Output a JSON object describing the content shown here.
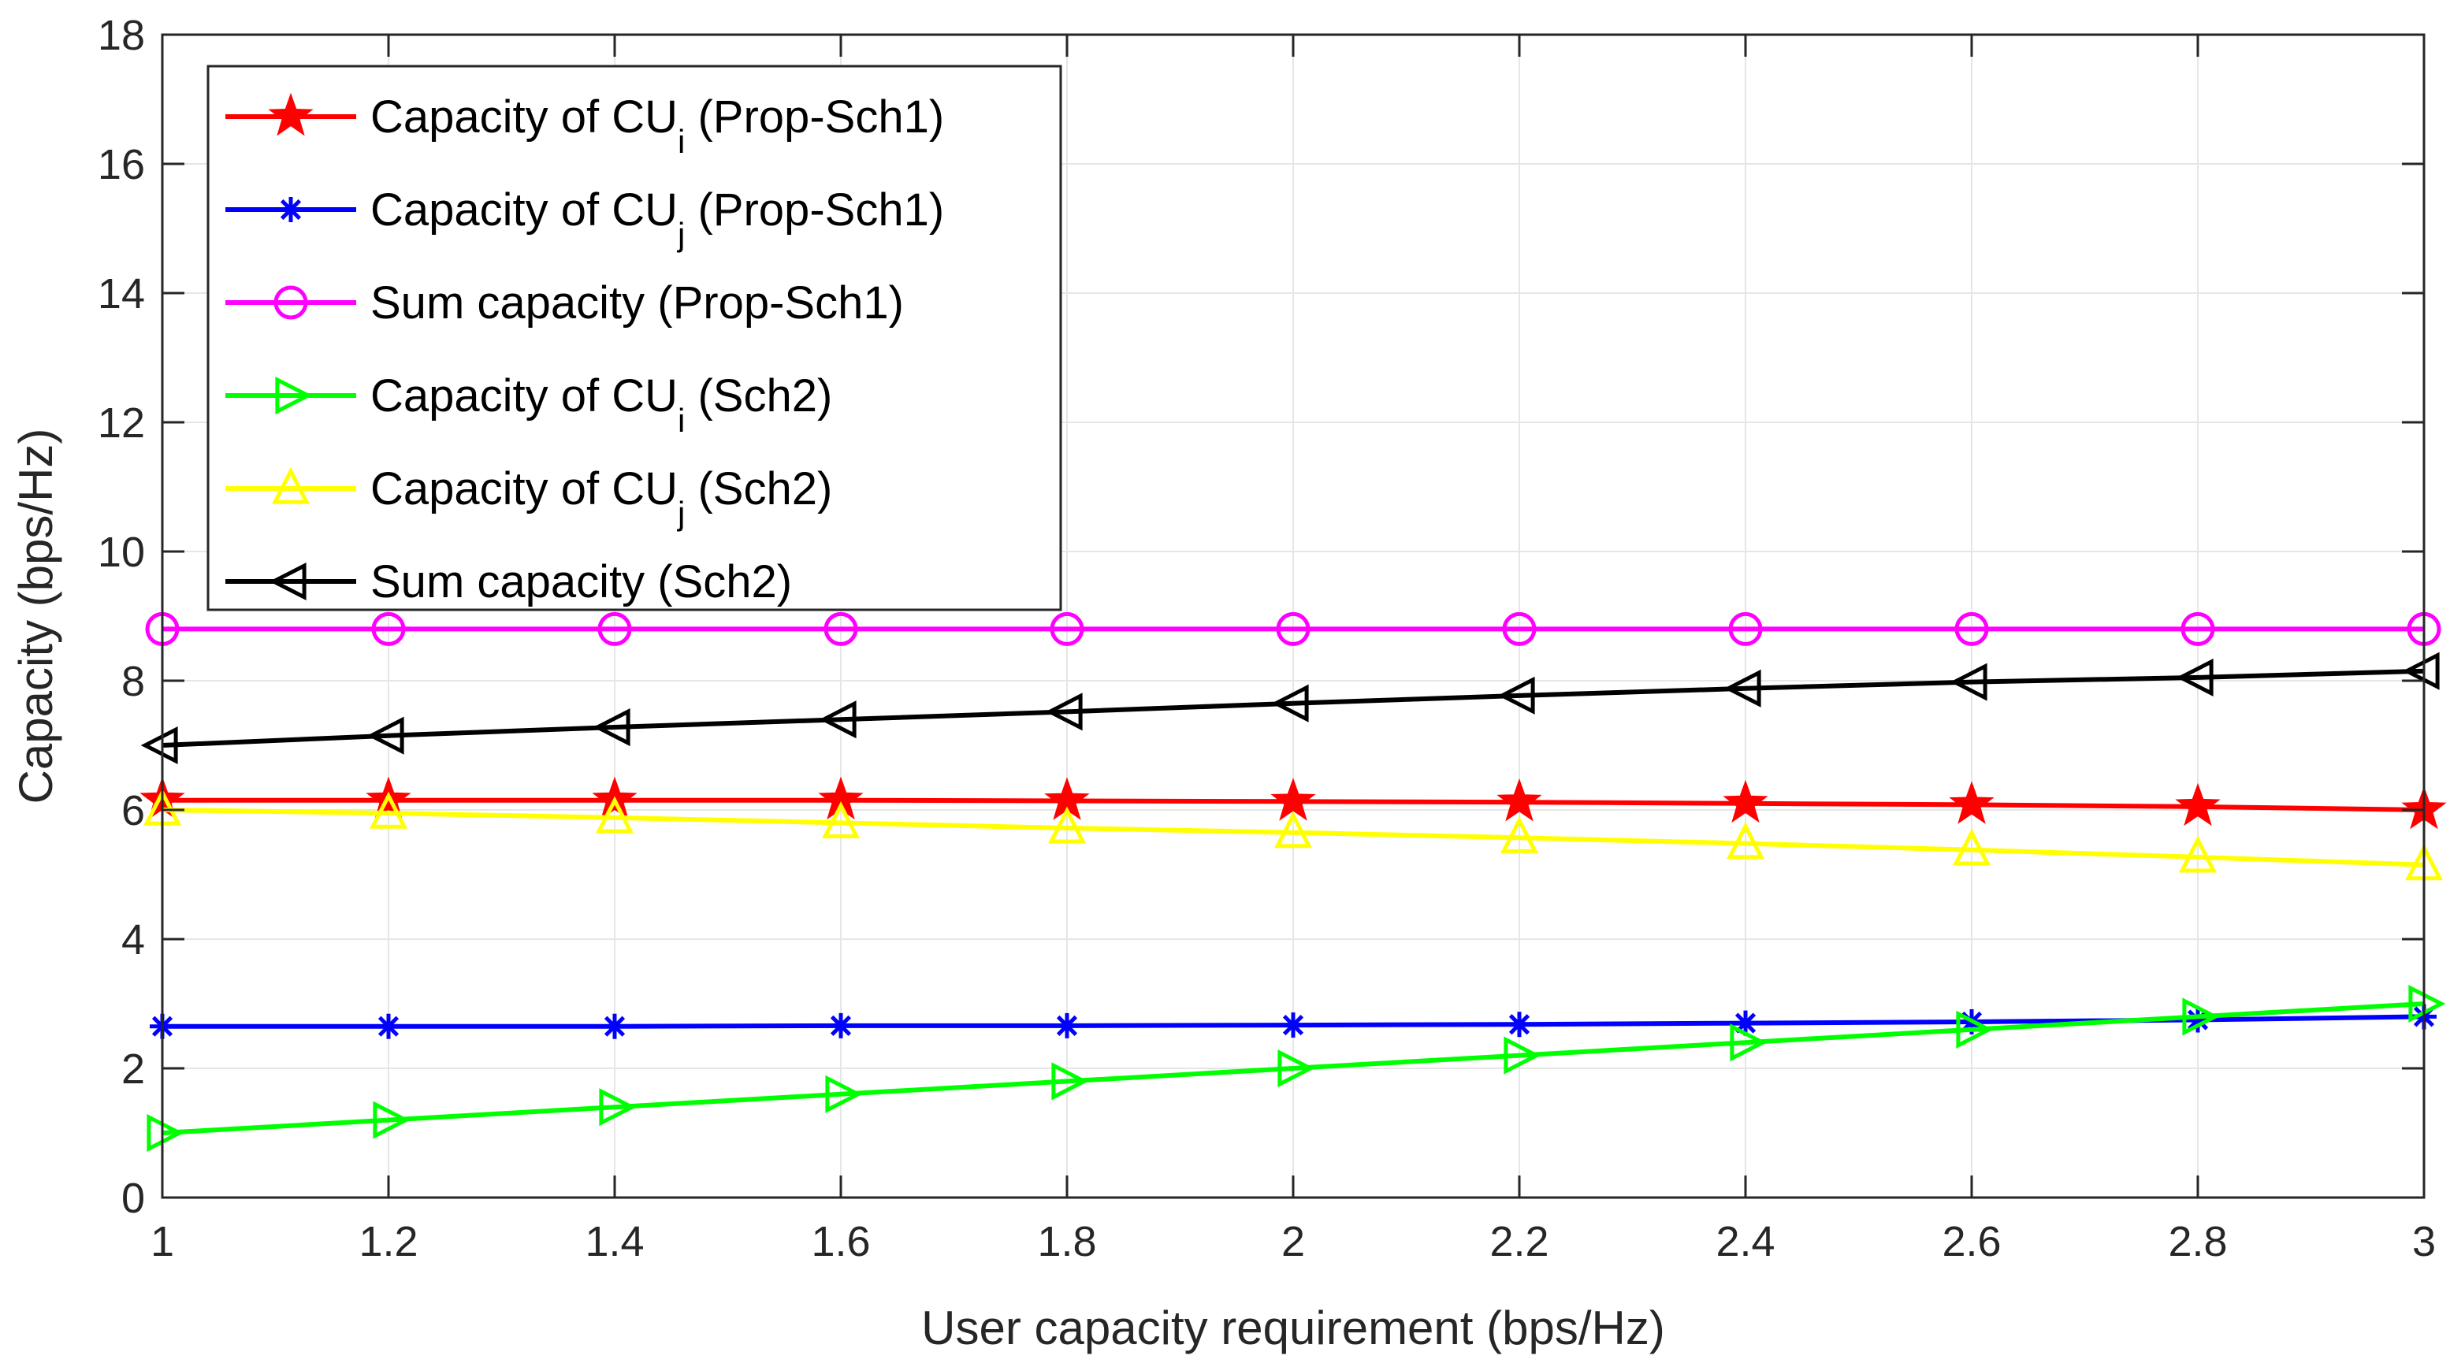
{
  "chart_data": {
    "type": "line",
    "title": "",
    "xlabel": "User capacity requirement (bps/Hz)",
    "ylabel": "Capacity (bps/Hz)",
    "xlim": [
      1,
      3
    ],
    "ylim": [
      0,
      18
    ],
    "grid": true,
    "legend_position": "top-left",
    "x": [
      1,
      1.2,
      1.4,
      1.6,
      1.8,
      2,
      2.2,
      2.4,
      2.6,
      2.8,
      3
    ],
    "x_ticks": [
      1,
      1.2,
      1.4,
      1.6,
      1.8,
      2,
      2.2,
      2.4,
      2.6,
      2.8,
      3
    ],
    "x_tick_labels": [
      "1",
      "1.2",
      "1.4",
      "1.6",
      "1.8",
      "2",
      "2.2",
      "2.4",
      "2.6",
      "2.8",
      "3"
    ],
    "y_ticks": [
      0,
      2,
      4,
      6,
      8,
      10,
      12,
      14,
      16,
      18
    ],
    "y_tick_labels": [
      "0",
      "2",
      "4",
      "6",
      "8",
      "10",
      "12",
      "14",
      "16",
      "18"
    ],
    "series": [
      {
        "name": "Capacity of CUi (Prop-Sch1)",
        "legend_main": "Capacity of CU",
        "legend_sub": "i",
        "legend_tail": " (Prop-Sch1)",
        "color": "#ff0000",
        "marker": "star",
        "values": [
          6.15,
          6.15,
          6.15,
          6.15,
          6.14,
          6.13,
          6.12,
          6.1,
          6.08,
          6.05,
          6.0
        ]
      },
      {
        "name": "Capacity of CUj (Prop-Sch1)",
        "legend_main": "Capacity of CU",
        "legend_sub": "j",
        "legend_tail": " (Prop-Sch1)",
        "color": "#0000ff",
        "marker": "asterisk",
        "values": [
          2.65,
          2.65,
          2.65,
          2.66,
          2.66,
          2.67,
          2.68,
          2.7,
          2.72,
          2.75,
          2.8
        ]
      },
      {
        "name": "Sum capacity (Prop-Sch1)",
        "legend_main": "Sum capacity (Prop-Sch1)",
        "legend_sub": "",
        "legend_tail": "",
        "color": "#ff00ff",
        "marker": "circle",
        "values": [
          8.8,
          8.8,
          8.8,
          8.8,
          8.8,
          8.8,
          8.8,
          8.8,
          8.8,
          8.8,
          8.8
        ]
      },
      {
        "name": "Capacity of CUi (Sch2)",
        "legend_main": "Capacity of CU",
        "legend_sub": "i",
        "legend_tail": " (Sch2)",
        "color": "#00ff00",
        "marker": "triangle-right",
        "values": [
          1.0,
          1.2,
          1.4,
          1.6,
          1.8,
          2.0,
          2.2,
          2.4,
          2.6,
          2.8,
          3.0
        ]
      },
      {
        "name": "Capacity of CUj (Sch2)",
        "legend_main": "Capacity of CU",
        "legend_sub": "j",
        "legend_tail": " (Sch2)",
        "color": "#ffff00",
        "marker": "triangle-up",
        "values": [
          6.0,
          5.95,
          5.88,
          5.8,
          5.72,
          5.65,
          5.57,
          5.48,
          5.38,
          5.27,
          5.15
        ]
      },
      {
        "name": "Sum capacity (Sch2)",
        "legend_main": "Sum capacity (Sch2)",
        "legend_sub": "",
        "legend_tail": "",
        "color": "#000000",
        "marker": "triangle-left",
        "values": [
          7.0,
          7.15,
          7.28,
          7.4,
          7.52,
          7.65,
          7.77,
          7.88,
          7.98,
          8.05,
          8.15
        ]
      }
    ]
  }
}
